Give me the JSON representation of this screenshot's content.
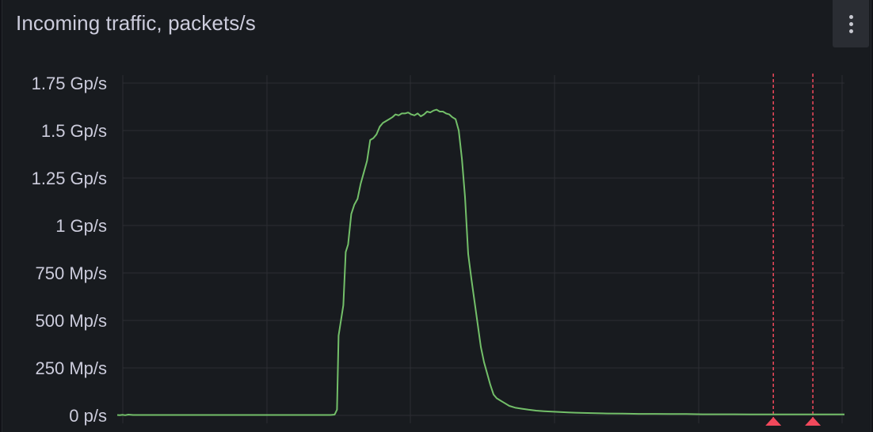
{
  "panel": {
    "title": "Incoming traffic, packets/s"
  },
  "chart_data": {
    "type": "line",
    "title": "Incoming traffic, packets/s",
    "xlabel": "",
    "ylabel": "",
    "ylim": [
      0,
      1.75
    ],
    "y_ticks": [
      {
        "value": 0,
        "label": "0 p/s"
      },
      {
        "value": 0.25,
        "label": "250 Mp/s"
      },
      {
        "value": 0.5,
        "label": "500 Mp/s"
      },
      {
        "value": 0.75,
        "label": "750 Mp/s"
      },
      {
        "value": 1,
        "label": "1 Gp/s"
      },
      {
        "value": 1.25,
        "label": "1.25 Gp/s"
      },
      {
        "value": 1.5,
        "label": "1.5 Gp/s"
      },
      {
        "value": 1.75,
        "label": "1.75 Gp/s"
      }
    ],
    "grid": true,
    "colors": {
      "series": "#73bf69",
      "annotation": "#f2495c",
      "grid": "#2c2e33",
      "text": "#ccccdc"
    },
    "series": [
      {
        "name": "",
        "points": [
          [
            0,
            0.002
          ],
          [
            3,
            0.001
          ],
          [
            7,
            0.003
          ],
          [
            10,
            0.001
          ],
          [
            14,
            0.004
          ],
          [
            20,
            0.002
          ],
          [
            30,
            0.002
          ],
          [
            40,
            0.002
          ],
          [
            50,
            0.002
          ],
          [
            60,
            0.002
          ],
          [
            70,
            0.002
          ],
          [
            80,
            0.002
          ],
          [
            90,
            0.002
          ],
          [
            100,
            0.002
          ],
          [
            110,
            0.002
          ],
          [
            120,
            0.002
          ],
          [
            130,
            0.002
          ],
          [
            140,
            0.002
          ],
          [
            150,
            0.002
          ],
          [
            160,
            0.002
          ],
          [
            170,
            0.002
          ],
          [
            180,
            0.002
          ],
          [
            190,
            0.002
          ],
          [
            200,
            0.002
          ],
          [
            210,
            0.002
          ],
          [
            220,
            0.002
          ],
          [
            230,
            0.002
          ],
          [
            240,
            0.002
          ],
          [
            250,
            0.002
          ],
          [
            260,
            0.002
          ],
          [
            270,
            0.002
          ],
          [
            275,
            0.004
          ],
          [
            278,
            0.03
          ],
          [
            280,
            0.42
          ],
          [
            283,
            0.5
          ],
          [
            286,
            0.58
          ],
          [
            289,
            0.86
          ],
          [
            292,
            0.9
          ],
          [
            296,
            1.06
          ],
          [
            300,
            1.11
          ],
          [
            304,
            1.14
          ],
          [
            308,
            1.22
          ],
          [
            312,
            1.28
          ],
          [
            316,
            1.34
          ],
          [
            320,
            1.45
          ],
          [
            324,
            1.46
          ],
          [
            328,
            1.48
          ],
          [
            332,
            1.52
          ],
          [
            336,
            1.54
          ],
          [
            340,
            1.55
          ],
          [
            344,
            1.56
          ],
          [
            348,
            1.57
          ],
          [
            352,
            1.585
          ],
          [
            356,
            1.58
          ],
          [
            360,
            1.59
          ],
          [
            364,
            1.59
          ],
          [
            368,
            1.595
          ],
          [
            372,
            1.585
          ],
          [
            376,
            1.58
          ],
          [
            380,
            1.59
          ],
          [
            384,
            1.575
          ],
          [
            388,
            1.585
          ],
          [
            392,
            1.6
          ],
          [
            396,
            1.595
          ],
          [
            400,
            1.605
          ],
          [
            404,
            1.61
          ],
          [
            408,
            1.6
          ],
          [
            412,
            1.6
          ],
          [
            416,
            1.59
          ],
          [
            420,
            1.585
          ],
          [
            424,
            1.57
          ],
          [
            428,
            1.56
          ],
          [
            432,
            1.5
          ],
          [
            436,
            1.35
          ],
          [
            440,
            1.15
          ],
          [
            444,
            0.85
          ],
          [
            448,
            0.72
          ],
          [
            452,
            0.6
          ],
          [
            456,
            0.48
          ],
          [
            460,
            0.36
          ],
          [
            464,
            0.28
          ],
          [
            468,
            0.22
          ],
          [
            472,
            0.16
          ],
          [
            476,
            0.11
          ],
          [
            480,
            0.09
          ],
          [
            488,
            0.07
          ],
          [
            496,
            0.05
          ],
          [
            504,
            0.04
          ],
          [
            512,
            0.035
          ],
          [
            520,
            0.03
          ],
          [
            530,
            0.025
          ],
          [
            540,
            0.022
          ],
          [
            550,
            0.02
          ],
          [
            560,
            0.018
          ],
          [
            570,
            0.016
          ],
          [
            580,
            0.014
          ],
          [
            600,
            0.012
          ],
          [
            620,
            0.01
          ],
          [
            640,
            0.009
          ],
          [
            660,
            0.008
          ],
          [
            680,
            0.008
          ],
          [
            700,
            0.007
          ],
          [
            720,
            0.007
          ],
          [
            740,
            0.006
          ],
          [
            760,
            0.006
          ],
          [
            780,
            0.006
          ],
          [
            800,
            0.005
          ],
          [
            820,
            0.005
          ],
          [
            840,
            0.005
          ],
          [
            860,
            0.005
          ],
          [
            880,
            0.005
          ],
          [
            900,
            0.005
          ],
          [
            920,
            0.005
          ]
        ]
      }
    ],
    "xlim": [
      0,
      920
    ],
    "annotations": [
      {
        "x": 830
      },
      {
        "x": 880
      }
    ]
  }
}
